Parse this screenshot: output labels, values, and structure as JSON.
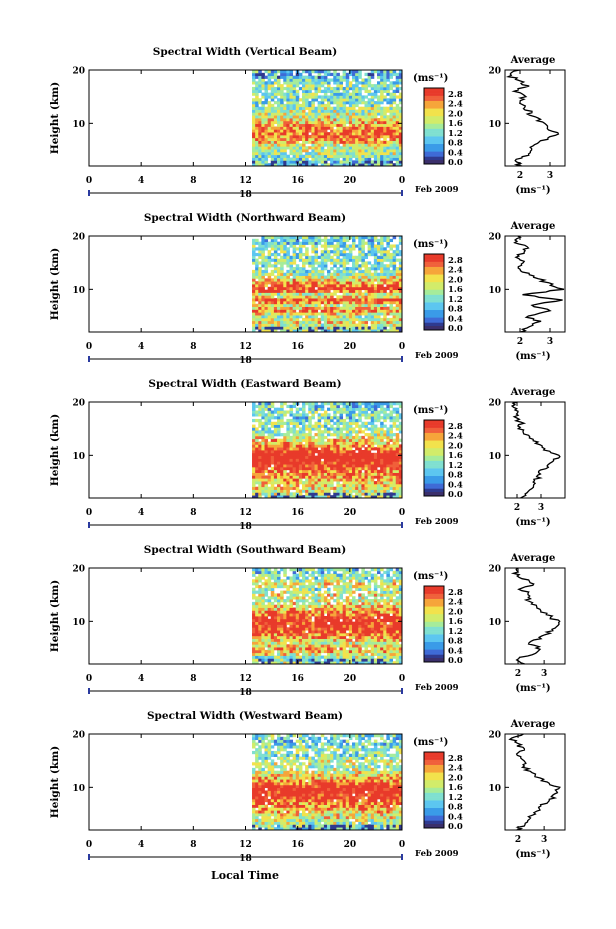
{
  "x_axis_label": "Local Time",
  "month_label": "Feb 2009",
  "colorbar_unit": "(ms⁻¹)",
  "avg_title": "Average",
  "avg_unit": "(ms⁻¹)",
  "colors": {
    "scale": [
      "#2f3a8f",
      "#3f6bd6",
      "#3a9be8",
      "#5cc6f0",
      "#7fe0d0",
      "#a6ec9a",
      "#d2ec6a",
      "#f2e24c",
      "#f6a53a",
      "#f0603a",
      "#e83a2a"
    ],
    "dark_bottom": "#3b2f6b"
  },
  "chart_data": [
    {
      "type": "heatmap",
      "title": "Spectral Width (Vertical Beam)",
      "ylabel": "Height (km)",
      "xlabel": "",
      "x_ticks": [
        "0",
        "4",
        "8",
        "12",
        "16",
        "20",
        "0"
      ],
      "x_range_hours": [
        0,
        24
      ],
      "data_start_hour": 12.5,
      "y_ticks": [
        "10",
        "20"
      ],
      "y_range_km": [
        2,
        20
      ],
      "day_label": "18",
      "colorbar_ticks": [
        "2.8",
        "2.4",
        "2.0",
        "1.6",
        "1.2",
        "0.8",
        "0.4",
        "0.0"
      ],
      "colorbar_range": [
        0,
        3.0
      ],
      "avg_profile": {
        "xlabel_ticks": [
          "2",
          "3"
        ],
        "x_range": [
          1.5,
          3.5
        ],
        "height": [
          2,
          3,
          4,
          5,
          6,
          7,
          8,
          9,
          10,
          11,
          12,
          13,
          14,
          15,
          16,
          17,
          18,
          19,
          20
        ],
        "value": [
          2.0,
          1.8,
          2.2,
          2.3,
          2.5,
          2.9,
          3.2,
          3.0,
          2.8,
          2.5,
          2.3,
          2.2,
          2.0,
          2.1,
          1.9,
          2.2,
          2.0,
          1.6,
          1.9
        ]
      }
    },
    {
      "type": "heatmap",
      "title": "Spectral Width (Northward Beam)",
      "ylabel": "Height (km)",
      "xlabel": "",
      "x_ticks": [
        "0",
        "4",
        "8",
        "12",
        "16",
        "20",
        "0"
      ],
      "x_range_hours": [
        0,
        24
      ],
      "data_start_hour": 12.5,
      "y_ticks": [
        "10",
        "20"
      ],
      "y_range_km": [
        2,
        20
      ],
      "day_label": "18",
      "colorbar_ticks": [
        "2.8",
        "2.4",
        "2.0",
        "1.6",
        "1.2",
        "0.8",
        "0.4",
        "0.0"
      ],
      "colorbar_range": [
        0,
        3.0
      ],
      "avg_profile": {
        "xlabel_ticks": [
          "2",
          "3"
        ],
        "x_range": [
          1.5,
          3.5
        ],
        "height": [
          2,
          3,
          4,
          5,
          6,
          7,
          8,
          9,
          10,
          11,
          12,
          13,
          14,
          15,
          16,
          17,
          18,
          19,
          20
        ],
        "value": [
          2.1,
          2.3,
          2.6,
          2.2,
          3.0,
          2.4,
          3.3,
          2.2,
          3.4,
          3.0,
          2.6,
          2.2,
          2.0,
          2.2,
          1.9,
          2.1,
          2.2,
          1.8,
          2.0
        ]
      }
    },
    {
      "type": "heatmap",
      "title": "Spectral Width (Eastward Beam)",
      "ylabel": "Height (km)",
      "xlabel": "",
      "x_ticks": [
        "0",
        "4",
        "8",
        "12",
        "16",
        "20",
        "0"
      ],
      "x_range_hours": [
        0,
        24
      ],
      "data_start_hour": 12.5,
      "y_ticks": [
        "10",
        "20"
      ],
      "y_range_km": [
        2,
        20
      ],
      "day_label": "18",
      "colorbar_ticks": [
        "2.8",
        "2.4",
        "2.0",
        "1.6",
        "1.2",
        "0.8",
        "0.4",
        "0.0"
      ],
      "colorbar_range": [
        0,
        3.0
      ],
      "avg_profile": {
        "xlabel_ticks": [
          "2",
          "3"
        ],
        "x_range": [
          1.5,
          4.0
        ],
        "height": [
          2,
          3,
          4,
          5,
          6,
          7,
          8,
          9,
          10,
          11,
          12,
          13,
          14,
          15,
          16,
          17,
          18,
          19,
          20
        ],
        "value": [
          2.2,
          2.4,
          2.6,
          2.7,
          2.9,
          3.0,
          3.3,
          3.6,
          3.7,
          3.2,
          2.9,
          2.6,
          2.3,
          2.1,
          2.2,
          1.9,
          2.1,
          1.8,
          2.0
        ]
      }
    },
    {
      "type": "heatmap",
      "title": "Spectral Width (Southward Beam)",
      "ylabel": "Height (km)",
      "xlabel": "",
      "x_ticks": [
        "0",
        "4",
        "8",
        "12",
        "16",
        "20",
        "0"
      ],
      "x_range_hours": [
        0,
        24
      ],
      "data_start_hour": 12.5,
      "y_ticks": [
        "10",
        "20"
      ],
      "y_range_km": [
        2,
        20
      ],
      "day_label": "18",
      "colorbar_ticks": [
        "2.8",
        "2.4",
        "2.0",
        "1.6",
        "1.2",
        "0.8",
        "0.4",
        "0.0"
      ],
      "colorbar_range": [
        0,
        3.0
      ],
      "avg_profile": {
        "xlabel_ticks": [
          "2",
          "3"
        ],
        "x_range": [
          1.5,
          3.8
        ],
        "height": [
          2,
          3,
          4,
          5,
          6,
          7,
          8,
          9,
          10,
          11,
          12,
          13,
          14,
          15,
          16,
          17,
          18,
          19,
          20
        ],
        "value": [
          2.3,
          2.0,
          2.6,
          2.8,
          2.4,
          2.9,
          3.2,
          3.4,
          3.5,
          3.2,
          2.9,
          2.6,
          2.3,
          2.5,
          2.1,
          2.6,
          2.2,
          1.9,
          2.0
        ]
      }
    },
    {
      "type": "heatmap",
      "title": "Spectral Width (Westward Beam)",
      "ylabel": "Height (km)",
      "xlabel": "Local Time",
      "x_ticks": [
        "0",
        "4",
        "8",
        "12",
        "16",
        "20",
        "0"
      ],
      "x_range_hours": [
        0,
        24
      ],
      "data_start_hour": 12.5,
      "y_ticks": [
        "10",
        "20"
      ],
      "y_range_km": [
        2,
        20
      ],
      "day_label": "18",
      "colorbar_ticks": [
        "2.8",
        "2.4",
        "2.0",
        "1.6",
        "1.2",
        "0.8",
        "0.4",
        "0.0"
      ],
      "colorbar_range": [
        0,
        3.0
      ],
      "avg_profile": {
        "xlabel_ticks": [
          "2",
          "3"
        ],
        "x_range": [
          1.5,
          3.8
        ],
        "height": [
          2,
          3,
          4,
          5,
          6,
          7,
          8,
          9,
          10,
          11,
          12,
          13,
          14,
          15,
          16,
          17,
          18,
          19,
          20
        ],
        "value": [
          2.0,
          2.2,
          2.4,
          2.6,
          2.8,
          3.0,
          3.3,
          3.5,
          3.5,
          3.1,
          2.7,
          2.4,
          2.2,
          2.3,
          2.0,
          2.2,
          2.0,
          1.8,
          2.1
        ]
      }
    }
  ]
}
